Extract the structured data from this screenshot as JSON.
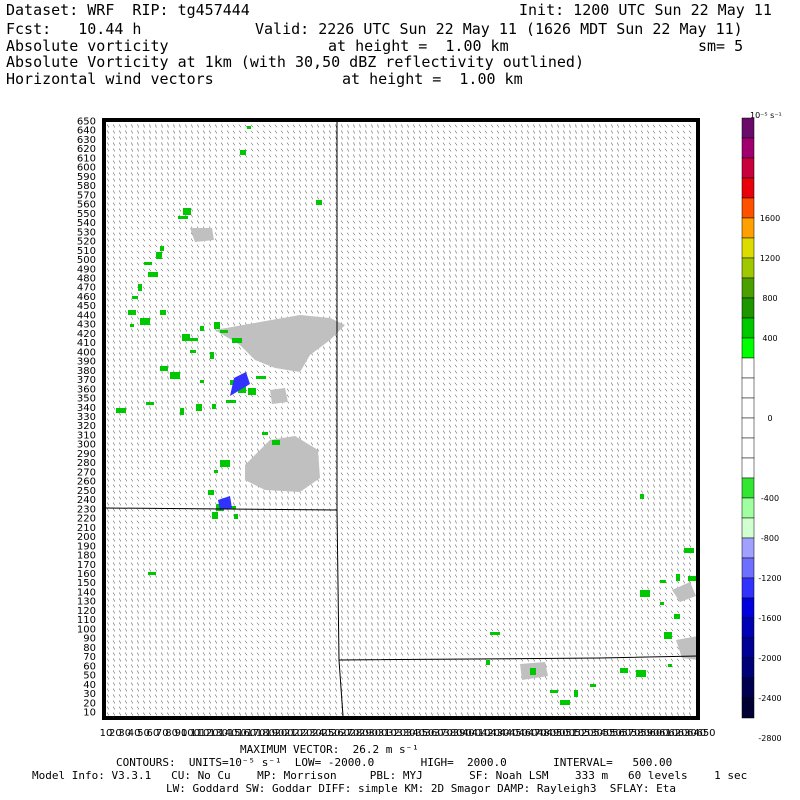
{
  "header": {
    "dataset_line": "Dataset: WRF  RIP: tg457444",
    "init_line": "Init: 1200 UTC Sun 22 May 11",
    "fcst_line": "Fcst:   10.44 h",
    "valid_line": "Valid: 2226 UTC Sun 22 May 11 (1626 MDT Sun 22 May 11)",
    "field1_name": "Absolute vorticity",
    "field1_height": "at height =  1.00 km",
    "field1_sm": "sm= 5",
    "field2_name": "Absolute Vorticity at 1km (with 30,50 dBZ reflectivity outlined)",
    "field3_name": "Horizontal wind vectors",
    "field3_height": "at height =  1.00 km"
  },
  "footer": {
    "max_vector": "MAXIMUM VECTOR:  26.2 m s⁻¹",
    "contours": "CONTOURS:  UNITS=10⁻⁵ s⁻¹  LOW= -2000.0       HIGH=  2000.0       INTERVAL=   500.00",
    "model_info": "Model Info: V3.3.1   CU: No Cu    MP: Morrison     PBL: MYJ       SF: Noah LSM    333 m   60 levels    1 sec",
    "physics_info": "LW: Goddard SW: Goddar DIFF: simple KM: 2D Smagor DAMP: Rayleigh3  SFLAY: Eta"
  },
  "colorbar": {
    "units": "10⁻⁵ s⁻¹",
    "colors": [
      "#6a0a6a",
      "#a0006e",
      "#c8003c",
      "#e8000a",
      "#ff5000",
      "#ffa000",
      "#dcdc00",
      "#a0c800",
      "#4aa000",
      "#1e9600",
      "#00c800",
      "#00ff00",
      "#ffffff",
      "#ffffff",
      "#ffffff",
      "#ffffff",
      "#ffffff",
      "#ffffff",
      "#32e632",
      "#a0ffa0",
      "#d2ffd2",
      "#a0a0ff",
      "#6e6eff",
      "#3232ff",
      "#0000dc",
      "#0000b4",
      "#000096",
      "#000078",
      "#000050",
      "#000032"
    ],
    "labels": [
      {
        "text": "1600",
        "index": 5
      },
      {
        "text": "1200",
        "index": 7
      },
      {
        "text": "800",
        "index": 9
      },
      {
        "text": "400",
        "index": 11
      },
      {
        "text": "0",
        "index": 15
      },
      {
        "text": "-400",
        "index": 19
      },
      {
        "text": "-800",
        "index": 21
      },
      {
        "text": "-1200",
        "index": 23
      },
      {
        "text": "-1600",
        "index": 25
      },
      {
        "text": "-2000",
        "index": 27
      },
      {
        "text": "-2400",
        "index": 29
      },
      {
        "text": "-2800",
        "index": 31
      }
    ]
  },
  "y_axis": {
    "labels": [
      "650",
      "640",
      "630",
      "620",
      "610",
      "600",
      "590",
      "580",
      "570",
      "560",
      "550",
      "540",
      "530",
      "520",
      "510",
      "500",
      "490",
      "480",
      "470",
      "460",
      "450",
      "440",
      "430",
      "420",
      "410",
      "400",
      "390",
      "380",
      "370",
      "360",
      "350",
      "340",
      "330",
      "320",
      "310",
      "300",
      "290",
      "280",
      "270",
      "260",
      "250",
      "240",
      "230",
      "220",
      "210",
      "200",
      "190",
      "180",
      "170",
      "160",
      "150",
      "140",
      "130",
      "120",
      "110",
      "100",
      "90",
      "80",
      "70",
      "60",
      "50",
      "40",
      "30",
      "20",
      "10"
    ]
  },
  "x_axis": {
    "labels_start": 10,
    "labels_end": 650,
    "labels_step": 10
  },
  "map": {
    "vorticity_color": "#00c800",
    "reflectivity_color": "#c0c0c0",
    "vector_color": "#303030"
  }
}
